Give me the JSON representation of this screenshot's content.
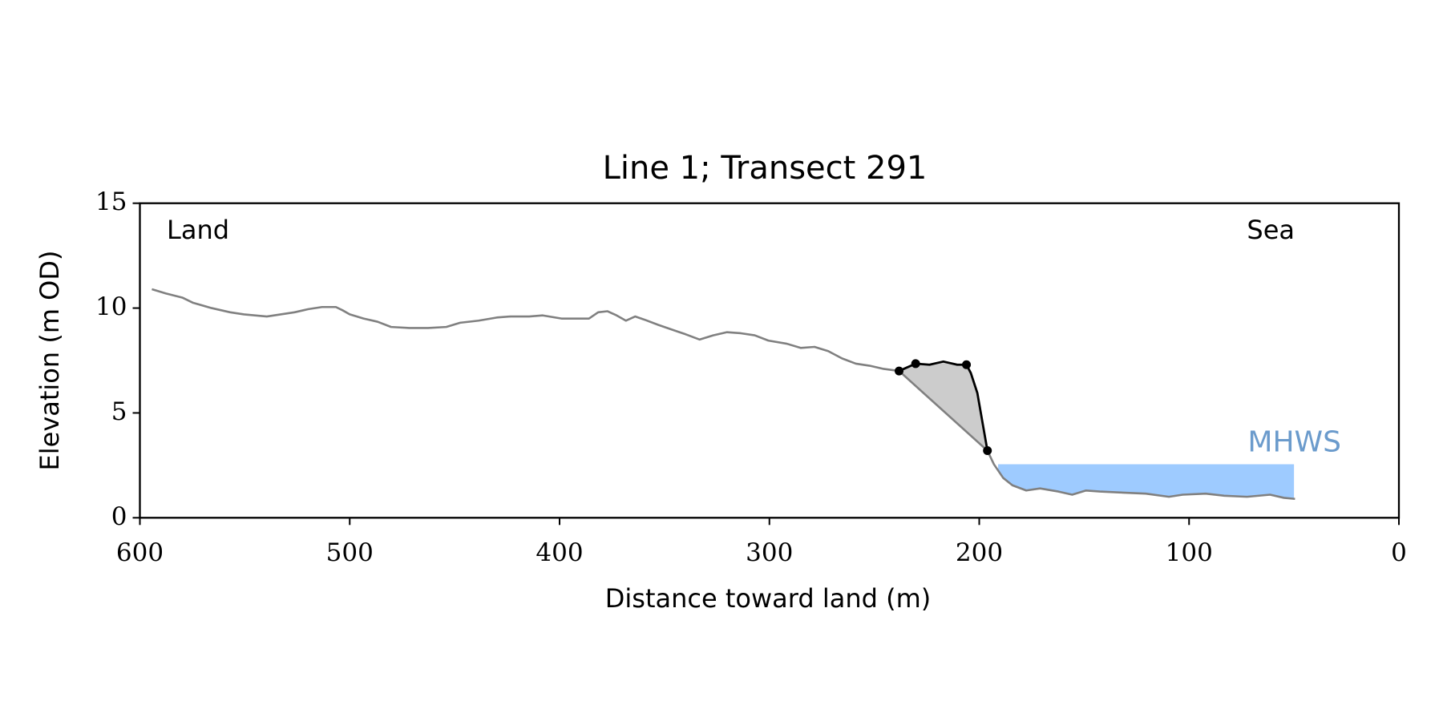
{
  "chart_data": {
    "type": "line",
    "title": "Line 1; Transect 291",
    "xlabel": "Distance toward land (m)",
    "ylabel": "Elevation (m OD)",
    "annotations": [
      "Land",
      "Sea"
    ],
    "xlim": [
      600,
      0
    ],
    "ylim": [
      0,
      15
    ],
    "xticks": [
      600,
      500,
      400,
      300,
      200,
      100,
      0
    ],
    "yticks": [
      0,
      5,
      10,
      15
    ],
    "series": [
      {
        "color": "#808080",
        "x": [
          594.3,
          587.7,
          579.8,
          574.6,
          565.8,
          557,
          550.4,
          539.5,
          532.9,
          526.3,
          519.7,
          513.2,
          506.6,
          503.5,
          500,
          493.4,
          486.8,
          480.3,
          471.5,
          462.7,
          454,
          447.4,
          438.6,
          429.9,
          423.3,
          414.5,
          408,
          399.1,
          392.5,
          386,
          381.6,
          377.2,
          372.8,
          368.4,
          364,
          359.6,
          353,
          344.3,
          339.9,
          333.3,
          326.8,
          320.2,
          313.6,
          307,
          300.5,
          291.7,
          285.1,
          278.5,
          272,
          265.4,
          258.8,
          252.2,
          245.6,
          238.2,
          196.1,
          193,
          188.6,
          184.2,
          177.6,
          171,
          162.3,
          155.7,
          149.1,
          142.5,
          131.6,
          120.6,
          109.6,
          103,
          92.1,
          83.3,
          72.4,
          61.4,
          54.8,
          49.5
        ],
        "values": [
          10.9,
          10.7,
          10.5,
          10.25,
          10.0,
          9.8,
          9.7,
          9.6,
          9.7,
          9.8,
          9.95,
          10.05,
          10.05,
          9.9,
          9.7,
          9.5,
          9.35,
          9.1,
          9.05,
          9.05,
          9.1,
          9.3,
          9.4,
          9.55,
          9.6,
          9.6,
          9.65,
          9.5,
          9.5,
          9.5,
          9.8,
          9.85,
          9.65,
          9.4,
          9.6,
          9.45,
          9.2,
          8.9,
          8.75,
          8.5,
          8.7,
          8.85,
          8.8,
          8.7,
          8.45,
          8.3,
          8.1,
          8.15,
          7.95,
          7.6,
          7.35,
          7.25,
          7.1,
          7.0,
          3.2,
          2.55,
          1.9,
          1.55,
          1.3,
          1.4,
          1.25,
          1.1,
          1.3,
          1.25,
          1.2,
          1.15,
          1.0,
          1.1,
          1.15,
          1.05,
          1.0,
          1.1,
          0.95,
          0.9
        ]
      },
      {
        "color": "#000000",
        "fill": "#cccccc",
        "x": [
          238.2,
          230.3,
          223.7,
          217.1,
          210.5,
          206.1,
          204,
          200.9,
          196.1
        ],
        "values": [
          7.0,
          7.35,
          7.3,
          7.45,
          7.3,
          7.3,
          6.9,
          5.95,
          3.2
        ]
      },
      {
        "color": "#000000",
        "marker": true,
        "x": [
          238.2,
          230.3,
          206.1,
          196.1
        ],
        "values": [
          7.0,
          7.35,
          7.3,
          3.2
        ]
      }
    ],
    "mhws": {
      "label": "MHWS",
      "value": 2.55,
      "x": [
        191,
        50
      ],
      "color": "#9ecbff",
      "label_color": "#6b9bcc"
    }
  }
}
